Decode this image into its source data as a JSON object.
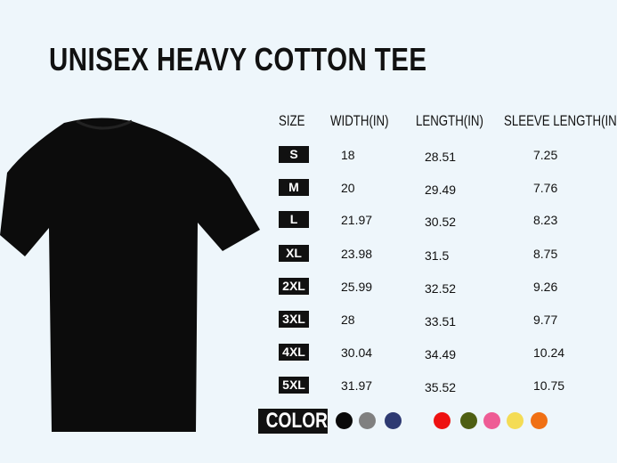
{
  "title": "UNISEX HEAVY COTTON TEE",
  "table": {
    "headers": [
      "SIZE",
      "WIDTH(IN)",
      "LENGTH(IN)",
      "SLEEVE LENGTH(IN"
    ],
    "rows": [
      {
        "size": "S",
        "width": "18",
        "length": "28.51",
        "sleeve": "7.25"
      },
      {
        "size": "M",
        "width": "20",
        "length": "29.49",
        "sleeve": "7.76"
      },
      {
        "size": "L",
        "width": "21.97",
        "length": "30.52",
        "sleeve": "8.23"
      },
      {
        "size": "XL",
        "width": "23.98",
        "length": "31.5",
        "sleeve": "8.75"
      },
      {
        "size": "2XL",
        "width": "25.99",
        "length": "32.52",
        "sleeve": "9.26"
      },
      {
        "size": "3XL",
        "width": "28",
        "length": "33.51",
        "sleeve": "9.77"
      },
      {
        "size": "4XL",
        "width": "30.04",
        "length": "34.49",
        "sleeve": "10.24"
      },
      {
        "size": "5XL",
        "width": "31.97",
        "length": "35.52",
        "sleeve": "10.75"
      }
    ]
  },
  "colors": {
    "label": "COLOR",
    "swatches": [
      "#0a0a0a",
      "#808080",
      "#2e3a72",
      "#ee1111",
      "#4e5f12",
      "#ee5c95",
      "#f4dc55",
      "#f07014"
    ]
  },
  "shirt_color": "#0c0c0c"
}
